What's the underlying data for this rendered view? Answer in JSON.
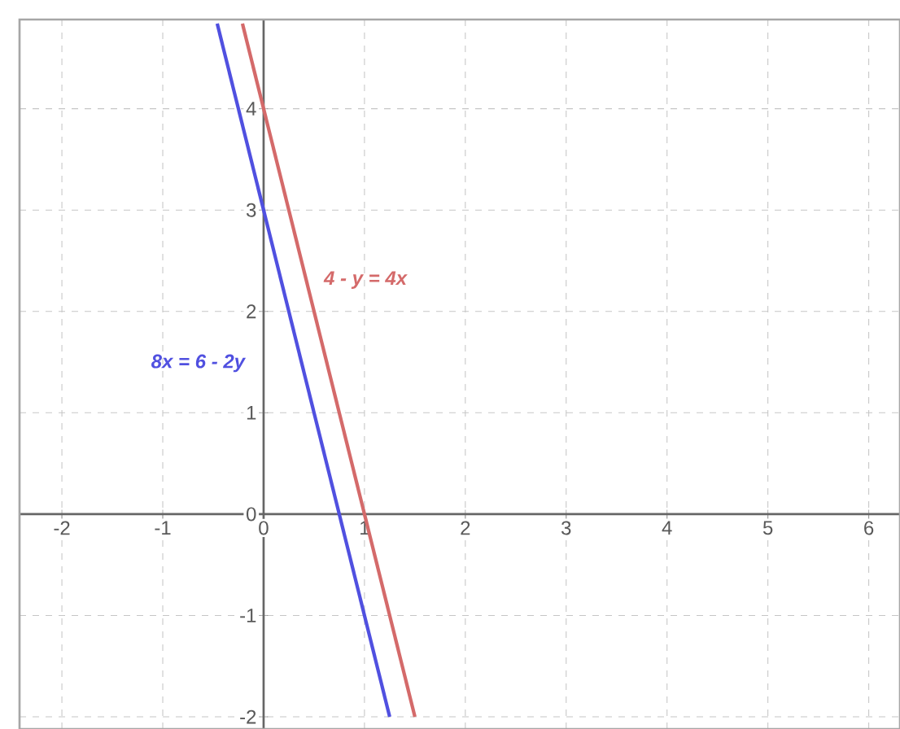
{
  "chart_data": {
    "type": "line",
    "xlim": [
      -2.42,
      6.31
    ],
    "ylim": [
      -2.12,
      4.88
    ],
    "xticks": [
      -2,
      -1,
      0,
      1,
      2,
      3,
      4,
      5,
      6
    ],
    "yticks": [
      -2,
      -1,
      0,
      1,
      2,
      3,
      4
    ],
    "grid": true,
    "series": [
      {
        "name": "4 - y = 4x",
        "color": "#d46a6a",
        "x": [
          -0.21,
          1.5
        ],
        "values": [
          4.84,
          -2
        ]
      },
      {
        "name": "8x = 6 - 2y",
        "color": "#5050e0",
        "x": [
          -0.46,
          1.25
        ],
        "values": [
          4.84,
          -2
        ]
      }
    ]
  }
}
